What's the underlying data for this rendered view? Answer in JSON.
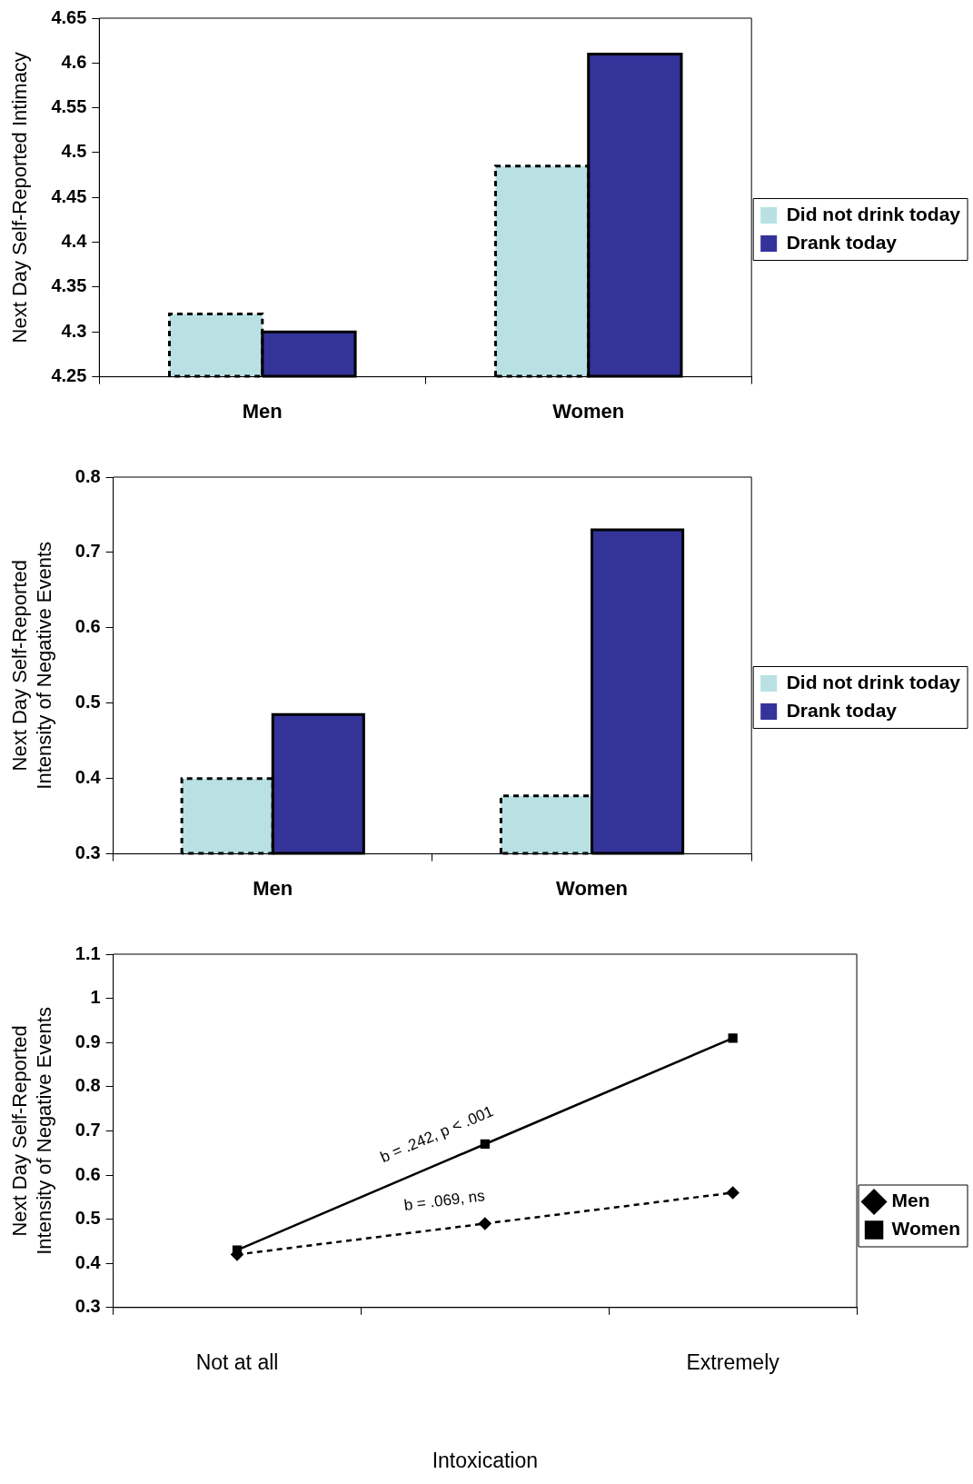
{
  "chart_data": [
    {
      "type": "bar",
      "ylabel": "Next Day Self-Reported Intimacy",
      "categories": [
        "Men",
        "Women"
      ],
      "series": [
        {
          "name": "Did not drink today",
          "color": "#b9e1e3",
          "line_style": "dashed",
          "values": [
            4.32,
            4.485
          ]
        },
        {
          "name": "Drank today",
          "color": "#333399",
          "values": [
            4.3,
            4.61
          ]
        }
      ],
      "ylim": [
        4.25,
        4.65
      ],
      "yticks": [
        4.25,
        4.3,
        4.35,
        4.4,
        4.45,
        4.5,
        4.55,
        4.6,
        4.65
      ],
      "legend": "right"
    },
    {
      "type": "bar",
      "ylabel": "Next Day Self-Reported Intensity of Negative Events",
      "categories": [
        "Men",
        "Women"
      ],
      "series": [
        {
          "name": "Did not drink today",
          "color": "#b9e1e3",
          "line_style": "dashed",
          "values": [
            0.4,
            0.377
          ]
        },
        {
          "name": "Drank today",
          "color": "#333399",
          "values": [
            0.485,
            0.73
          ]
        }
      ],
      "ylim": [
        0.3,
        0.8
      ],
      "yticks": [
        0.3,
        0.4,
        0.5,
        0.6,
        0.7,
        0.8
      ],
      "legend": "right"
    },
    {
      "type": "line",
      "ylabel": "Next Day Self-Reported Intensity of Negative Events",
      "xlabel": "Intoxication",
      "categories": [
        "Not at all",
        null,
        "Extremely"
      ],
      "series": [
        {
          "name": "Men",
          "color": "#000000",
          "line_style": "dashed",
          "marker": "diamond",
          "values": [
            0.42,
            0.49,
            0.56
          ]
        },
        {
          "name": "Women",
          "color": "#000000",
          "line_style": "solid",
          "marker": "square",
          "values": [
            0.43,
            0.67,
            0.91
          ]
        }
      ],
      "ylim": [
        0.3,
        1.1
      ],
      "yticks": [
        0.3,
        0.4,
        0.5,
        0.6,
        0.7,
        0.8,
        0.9,
        1,
        1.1
      ],
      "legend": "right",
      "annotations": [
        "b = .242, p < .001",
        "b = .069, ns"
      ]
    }
  ]
}
